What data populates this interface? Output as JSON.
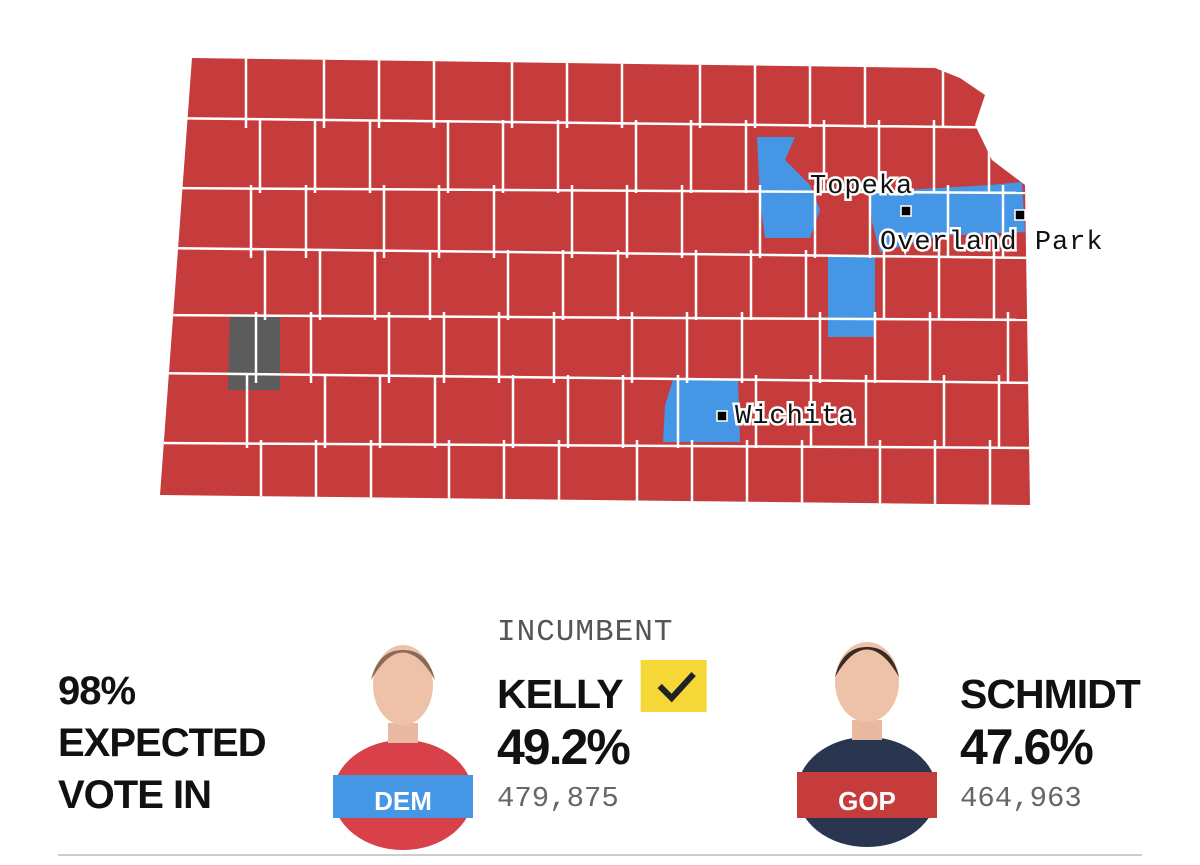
{
  "map": {
    "cities": [
      {
        "name": "Topeka"
      },
      {
        "name": "Overland Park"
      },
      {
        "name": "Wichita"
      }
    ]
  },
  "summary": {
    "lines": [
      "98%",
      "EXPECTED",
      "VOTE IN"
    ]
  },
  "candidates": [
    {
      "name": "KELLY",
      "party": "DEM",
      "tag": "INCUMBENT",
      "percent": "49.2%",
      "votes": "479,875",
      "winner": true
    },
    {
      "name": "SCHMIDT",
      "party": "GOP",
      "percent": "47.6%",
      "votes": "464,963",
      "winner": false
    }
  ]
}
